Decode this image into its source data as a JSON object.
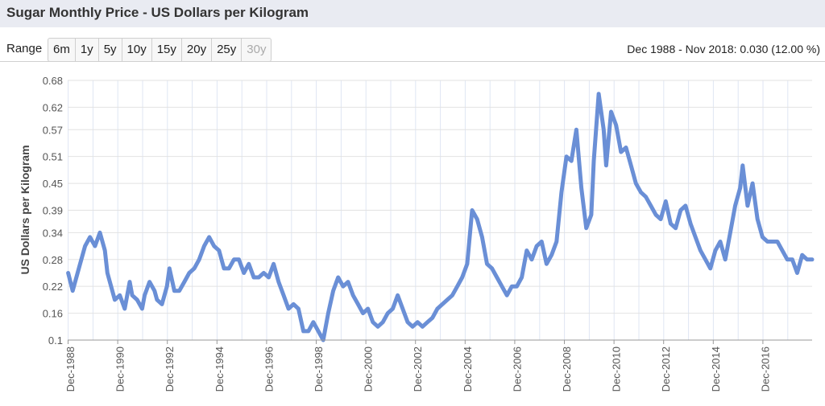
{
  "header": {
    "title": "Sugar Monthly Price - US Dollars per Kilogram"
  },
  "range": {
    "label": "Range",
    "buttons": [
      {
        "label": "6m",
        "enabled": true
      },
      {
        "label": "1y",
        "enabled": true
      },
      {
        "label": "5y",
        "enabled": true
      },
      {
        "label": "10y",
        "enabled": true
      },
      {
        "label": "15y",
        "enabled": true
      },
      {
        "label": "20y",
        "enabled": true
      },
      {
        "label": "25y",
        "enabled": true
      },
      {
        "label": "30y",
        "enabled": false
      }
    ],
    "summary": "Dec 1988 - Nov 2018: 0.030 (12.00 %)"
  },
  "colors": {
    "line": "#6a8fd6",
    "grid": "#dfe6f3",
    "title_bg": "#e9ebf2"
  },
  "chart_data": {
    "type": "line",
    "title": "",
    "xlabel": "",
    "ylabel": "US Dollars per Kilogram",
    "ylim": [
      0.1,
      0.68
    ],
    "y_ticks": [
      "0.1",
      "0.16",
      "0.22",
      "0.28",
      "0.34",
      "0.39",
      "0.45",
      "0.51",
      "0.57",
      "0.62",
      "0.68"
    ],
    "x_ticks": [
      "Dec-1988",
      "Dec-1990",
      "Dec-1992",
      "Dec-1994",
      "Dec-1996",
      "Dec-1998",
      "Dec-2000",
      "Dec-2002",
      "Dec-2004",
      "Dec-2006",
      "Dec-2008",
      "Dec-2010",
      "Dec-2012",
      "Dec-2014",
      "Dec-2016"
    ],
    "xlim": [
      1988.9,
      2018.9
    ],
    "grid": true,
    "series": [
      {
        "x": [
          1988.92,
          1989.1,
          1989.4,
          1989.6,
          1989.8,
          1990.0,
          1990.2,
          1990.4,
          1990.5,
          1990.7,
          1990.8,
          1991.0,
          1991.2,
          1991.4,
          1991.5,
          1991.7,
          1991.9,
          1992.0,
          1992.2,
          1992.4,
          1992.5,
          1992.7,
          1992.9,
          1993.0,
          1993.2,
          1993.4,
          1993.6,
          1993.8,
          1994.0,
          1994.2,
          1994.4,
          1994.6,
          1994.8,
          1995.0,
          1995.2,
          1995.4,
          1995.6,
          1995.8,
          1996.0,
          1996.2,
          1996.4,
          1996.6,
          1996.8,
          1997.0,
          1997.2,
          1997.4,
          1997.6,
          1997.8,
          1998.0,
          1998.2,
          1998.4,
          1998.6,
          1998.8,
          1999.0,
          1999.2,
          1999.4,
          1999.6,
          1999.8,
          2000.0,
          2000.2,
          2000.4,
          2000.6,
          2000.8,
          2001.0,
          2001.2,
          2001.4,
          2001.6,
          2001.8,
          2002.0,
          2002.2,
          2002.4,
          2002.6,
          2002.8,
          2003.0,
          2003.2,
          2003.4,
          2003.6,
          2003.8,
          2004.0,
          2004.2,
          2004.4,
          2004.6,
          2004.8,
          2005.0,
          2005.2,
          2005.4,
          2005.6,
          2005.8,
          2006.0,
          2006.2,
          2006.4,
          2006.6,
          2006.8,
          2007.0,
          2007.2,
          2007.4,
          2007.6,
          2007.8,
          2008.0,
          2008.2,
          2008.4,
          2008.6,
          2008.8,
          2009.0,
          2009.2,
          2009.4,
          2009.6,
          2009.8,
          2010.0,
          2010.1,
          2010.3,
          2010.5,
          2010.6,
          2010.8,
          2011.0,
          2011.2,
          2011.4,
          2011.6,
          2011.8,
          2012.0,
          2012.2,
          2012.4,
          2012.6,
          2012.8,
          2013.0,
          2013.2,
          2013.4,
          2013.6,
          2013.8,
          2014.0,
          2014.2,
          2014.4,
          2014.6,
          2014.8,
          2015.0,
          2015.2,
          2015.4,
          2015.6,
          2015.8,
          2016.0,
          2016.1,
          2016.3,
          2016.5,
          2016.7,
          2016.9,
          2017.1,
          2017.3,
          2017.5,
          2017.7,
          2017.9,
          2018.1,
          2018.3,
          2018.5,
          2018.7,
          2018.9
        ],
        "values": [
          0.25,
          0.21,
          0.27,
          0.31,
          0.33,
          0.31,
          0.34,
          0.3,
          0.25,
          0.21,
          0.19,
          0.2,
          0.17,
          0.23,
          0.2,
          0.19,
          0.17,
          0.2,
          0.23,
          0.21,
          0.19,
          0.18,
          0.22,
          0.26,
          0.21,
          0.21,
          0.23,
          0.25,
          0.26,
          0.28,
          0.31,
          0.33,
          0.31,
          0.3,
          0.26,
          0.26,
          0.28,
          0.28,
          0.25,
          0.27,
          0.24,
          0.24,
          0.25,
          0.24,
          0.27,
          0.23,
          0.2,
          0.17,
          0.18,
          0.17,
          0.12,
          0.12,
          0.14,
          0.12,
          0.1,
          0.16,
          0.21,
          0.24,
          0.22,
          0.23,
          0.2,
          0.18,
          0.16,
          0.17,
          0.14,
          0.13,
          0.14,
          0.16,
          0.17,
          0.2,
          0.17,
          0.14,
          0.13,
          0.14,
          0.13,
          0.14,
          0.15,
          0.17,
          0.18,
          0.19,
          0.2,
          0.22,
          0.24,
          0.27,
          0.39,
          0.37,
          0.33,
          0.27,
          0.26,
          0.24,
          0.22,
          0.2,
          0.22,
          0.22,
          0.24,
          0.3,
          0.28,
          0.31,
          0.32,
          0.27,
          0.29,
          0.32,
          0.43,
          0.51,
          0.5,
          0.57,
          0.44,
          0.35,
          0.38,
          0.5,
          0.65,
          0.57,
          0.49,
          0.61,
          0.58,
          0.52,
          0.53,
          0.49,
          0.45,
          0.43,
          0.42,
          0.4,
          0.38,
          0.37,
          0.41,
          0.36,
          0.35,
          0.39,
          0.4,
          0.36,
          0.33,
          0.3,
          0.28,
          0.26,
          0.3,
          0.32,
          0.28,
          0.34,
          0.4,
          0.44,
          0.49,
          0.4,
          0.45,
          0.37,
          0.33,
          0.32,
          0.32,
          0.32,
          0.3,
          0.28,
          0.28,
          0.25,
          0.29,
          0.28,
          0.28
        ]
      }
    ]
  }
}
